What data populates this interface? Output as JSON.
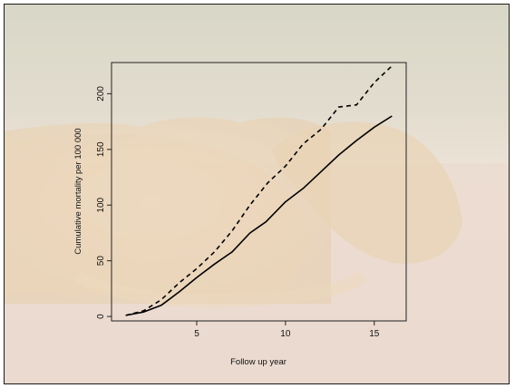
{
  "chart_data": {
    "type": "line",
    "title": "",
    "xlabel": "Follow up year",
    "ylabel": "Cumulative mortality per 100 000",
    "xlim": [
      0.2,
      16.8
    ],
    "ylim": [
      -4,
      228
    ],
    "x_ticks": [
      5,
      10,
      15
    ],
    "y_ticks": [
      0,
      50,
      100,
      150,
      200
    ],
    "grid": false,
    "legend": "none",
    "series": [
      {
        "style": "dashed",
        "color": "#000000",
        "x": [
          1,
          2,
          3,
          4,
          5,
          6,
          7,
          8,
          9,
          10,
          11,
          12,
          13,
          14,
          15,
          16
        ],
        "y": [
          1,
          5,
          15,
          30,
          43,
          58,
          77,
          100,
          120,
          135,
          155,
          168,
          188,
          190,
          210,
          225
        ]
      },
      {
        "style": "solid",
        "color": "#000000",
        "x": [
          1,
          2,
          3,
          4,
          5,
          6,
          7,
          8,
          8.9,
          10,
          11,
          12,
          13,
          14,
          15,
          16
        ],
        "y": [
          1,
          4,
          10,
          22,
          35,
          47,
          58,
          75,
          85,
          103,
          115,
          130,
          145,
          158,
          170,
          180
        ]
      }
    ]
  },
  "background": {
    "description_colors": {
      "grass": "#b9bfa4",
      "fur": "#e3c9a0",
      "ground": "#e5d3c7",
      "overlay": "#f4ece4"
    }
  }
}
